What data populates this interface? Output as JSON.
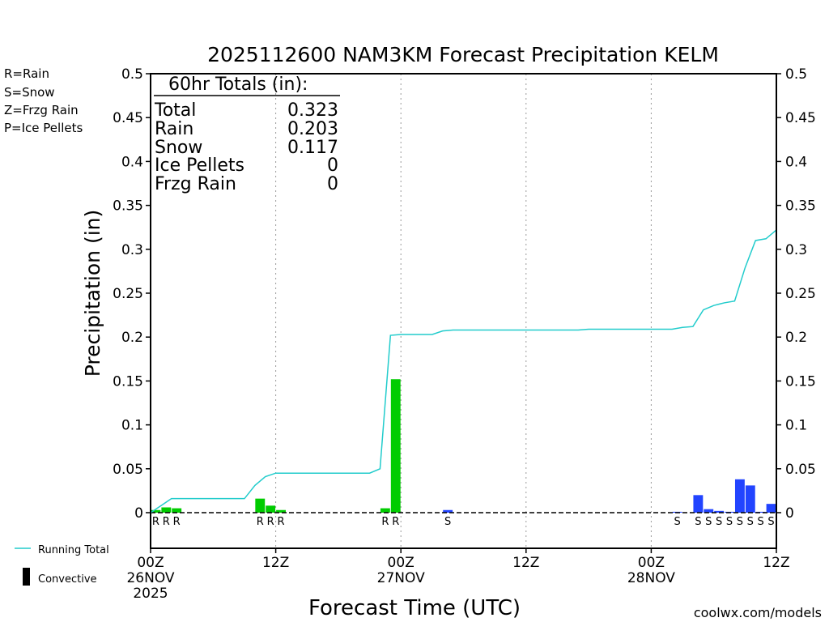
{
  "chart_data": {
    "type": "bar",
    "title": "2025112600 NAM3KM Forecast Precipitation KELM",
    "xlabel": "Forecast Time (UTC)",
    "ylabel": "Precipitation (in)",
    "ylim": [
      0,
      0.5
    ],
    "yticks": [
      "0",
      "0.05",
      "0.1",
      "0.15",
      "0.2",
      "0.25",
      "0.3",
      "0.35",
      "0.4",
      "0.45",
      "0.5"
    ],
    "xlim_hours": [
      0,
      60
    ],
    "xticks": [
      {
        "hour": 0,
        "lines": [
          "00Z",
          "26NOV",
          "2025"
        ]
      },
      {
        "hour": 12,
        "lines": [
          "12Z"
        ]
      },
      {
        "hour": 24,
        "lines": [
          "00Z",
          "27NOV"
        ]
      },
      {
        "hour": 36,
        "lines": [
          "12Z"
        ]
      },
      {
        "hour": 48,
        "lines": [
          "00Z",
          "28NOV"
        ]
      },
      {
        "hour": 60,
        "lines": [
          "12Z"
        ]
      }
    ],
    "ptype_legend": [
      {
        "label": "R=Rain",
        "color": "#22cc22"
      },
      {
        "label": "S=Snow",
        "color": "#3355ff"
      },
      {
        "label": "Z=Frzg Rain",
        "color": "#ff9933"
      },
      {
        "label": "P=Ice Pellets",
        "color": "#ee2299"
      }
    ],
    "totals": {
      "header": "60hr Totals (in):",
      "rows": [
        {
          "label": "Total",
          "value": "0.323"
        },
        {
          "label": "Rain",
          "value": "0.203"
        },
        {
          "label": "Snow",
          "value": "0.117"
        },
        {
          "label": "Ice Pellets",
          "value": "0"
        },
        {
          "label": "Frzg Rain",
          "value": "0"
        }
      ]
    },
    "series": [
      {
        "name": "Rain",
        "color": "#00cc00",
        "bars": [
          {
            "hour": 0.5,
            "value": 0.003,
            "code": "R"
          },
          {
            "hour": 1.5,
            "value": 0.006,
            "code": "R"
          },
          {
            "hour": 2.5,
            "value": 0.005,
            "code": "R"
          },
          {
            "hour": 10.5,
            "value": 0.016,
            "code": "R"
          },
          {
            "hour": 11.5,
            "value": 0.008,
            "code": "R"
          },
          {
            "hour": 12.5,
            "value": 0.003,
            "code": "R"
          },
          {
            "hour": 22.5,
            "value": 0.005,
            "code": "R"
          },
          {
            "hour": 23.5,
            "value": 0.152,
            "code": "R"
          }
        ]
      },
      {
        "name": "Snow",
        "color": "#2244ff",
        "bars": [
          {
            "hour": 28.5,
            "value": 0.003,
            "code": "S"
          },
          {
            "hour": 50.5,
            "value": 0.001,
            "code": "S"
          },
          {
            "hour": 52.5,
            "value": 0.02,
            "code": "S"
          },
          {
            "hour": 53.5,
            "value": 0.004,
            "code": "S"
          },
          {
            "hour": 54.5,
            "value": 0.002,
            "code": "S"
          },
          {
            "hour": 55.5,
            "value": 0.001,
            "code": "S"
          },
          {
            "hour": 56.5,
            "value": 0.038,
            "code": "S"
          },
          {
            "hour": 57.5,
            "value": 0.031,
            "code": "S"
          },
          {
            "hour": 58.5,
            "value": 0.001,
            "code": "S"
          },
          {
            "hour": 59.5,
            "value": 0.01,
            "code": "S"
          }
        ]
      },
      {
        "name": "Running Total",
        "color": "#22cccc",
        "points": [
          [
            0,
            0
          ],
          [
            1,
            0.008
          ],
          [
            2,
            0.016
          ],
          [
            3,
            0.016
          ],
          [
            4,
            0.016
          ],
          [
            5,
            0.016
          ],
          [
            6,
            0.016
          ],
          [
            7,
            0.016
          ],
          [
            8,
            0.016
          ],
          [
            9,
            0.016
          ],
          [
            10,
            0.031
          ],
          [
            11,
            0.041
          ],
          [
            12,
            0.045
          ],
          [
            13,
            0.045
          ],
          [
            14,
            0.045
          ],
          [
            15,
            0.045
          ],
          [
            16,
            0.045
          ],
          [
            17,
            0.045
          ],
          [
            18,
            0.045
          ],
          [
            19,
            0.045
          ],
          [
            20,
            0.045
          ],
          [
            21,
            0.045
          ],
          [
            22,
            0.05
          ],
          [
            23,
            0.202
          ],
          [
            24,
            0.203
          ],
          [
            25,
            0.203
          ],
          [
            26,
            0.203
          ],
          [
            27,
            0.203
          ],
          [
            28,
            0.207
          ],
          [
            29,
            0.208
          ],
          [
            30,
            0.208
          ],
          [
            31,
            0.208
          ],
          [
            32,
            0.208
          ],
          [
            33,
            0.208
          ],
          [
            34,
            0.208
          ],
          [
            35,
            0.208
          ],
          [
            36,
            0.208
          ],
          [
            37,
            0.208
          ],
          [
            38,
            0.208
          ],
          [
            39,
            0.208
          ],
          [
            40,
            0.208
          ],
          [
            41,
            0.208
          ],
          [
            42,
            0.209
          ],
          [
            43,
            0.209
          ],
          [
            44,
            0.209
          ],
          [
            45,
            0.209
          ],
          [
            46,
            0.209
          ],
          [
            47,
            0.209
          ],
          [
            48,
            0.209
          ],
          [
            49,
            0.209
          ],
          [
            50,
            0.209
          ],
          [
            51,
            0.211
          ],
          [
            52,
            0.212
          ],
          [
            53,
            0.231
          ],
          [
            54,
            0.236
          ],
          [
            55,
            0.239
          ],
          [
            56,
            0.241
          ],
          [
            57,
            0.279
          ],
          [
            58,
            0.31
          ],
          [
            59,
            0.312
          ],
          [
            60,
            0.322
          ]
        ]
      }
    ],
    "bottom_legend": [
      {
        "label": "Running Total",
        "kind": "line",
        "color": "#22cccc"
      },
      {
        "label": "Convective",
        "kind": "bar",
        "color": "#000000"
      }
    ],
    "credit": "coolwx.com/models"
  }
}
